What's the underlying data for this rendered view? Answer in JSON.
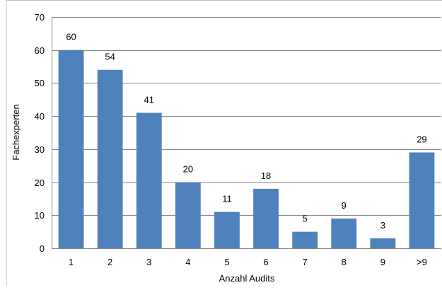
{
  "chart_data": {
    "type": "bar",
    "title": "",
    "xlabel": "Anzahl Audits",
    "ylabel": "Fachexperten",
    "ylim": [
      0,
      70
    ],
    "yticks": [
      0,
      10,
      20,
      30,
      40,
      50,
      60,
      70
    ],
    "grid": "horizontal",
    "legend": "none",
    "bar_color": "#4f81bd",
    "grid_color": "#878787",
    "categories": [
      "1",
      "2",
      "3",
      "4",
      "5",
      "6",
      "7",
      "8",
      "9",
      ">9"
    ],
    "values": [
      60,
      54,
      41,
      20,
      11,
      18,
      5,
      9,
      3,
      29
    ],
    "data_labels": [
      "60",
      "54",
      "41",
      "20",
      "11",
      "18",
      "5",
      "9",
      "3",
      "29"
    ]
  }
}
